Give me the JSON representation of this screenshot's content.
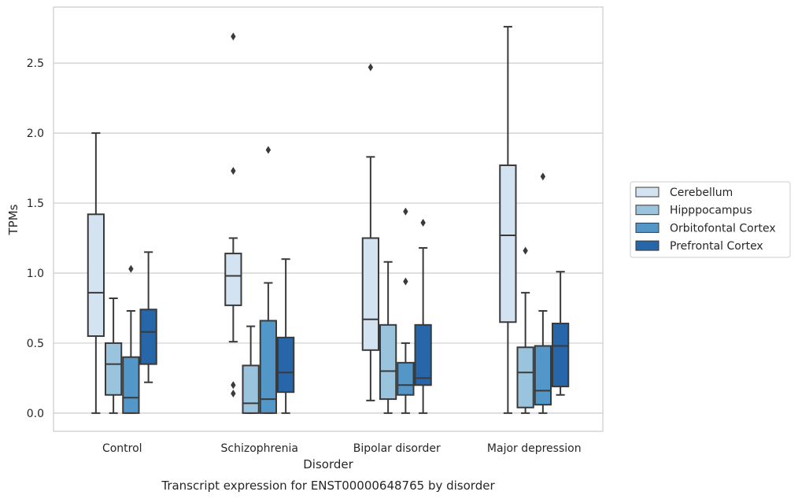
{
  "chart_data": {
    "type": "box",
    "title": "",
    "caption": "Transcript expression for ENST00000648765 by disorder",
    "xlabel": "Disorder",
    "ylabel": "TPMs",
    "ylim": [
      -0.13,
      2.9
    ],
    "yticks": [
      "0.0",
      "0.5",
      "1.0",
      "1.5",
      "2.0",
      "2.5"
    ],
    "grid": "horizontal",
    "legend_position": "right",
    "categories": [
      "Control",
      "Schizophrenia",
      "Bipolar disorder",
      "Major depression"
    ],
    "series": [
      {
        "name": "Cerebellum",
        "color": "#d3e3f2",
        "boxes": [
          {
            "whislo": 0.0,
            "q1": 0.55,
            "med": 0.86,
            "q3": 1.42,
            "whishi": 2.0,
            "fliers": []
          },
          {
            "whislo": 0.51,
            "q1": 0.77,
            "med": 0.98,
            "q3": 1.14,
            "whishi": 1.25,
            "fliers": [
              0.14,
              0.2,
              1.73,
              2.69
            ]
          },
          {
            "whislo": 0.09,
            "q1": 0.45,
            "med": 0.67,
            "q3": 1.25,
            "whishi": 1.83,
            "fliers": [
              2.47
            ]
          },
          {
            "whislo": 0.0,
            "q1": 0.65,
            "med": 1.27,
            "q3": 1.77,
            "whishi": 2.76,
            "fliers": []
          }
        ]
      },
      {
        "name": "Hipppocampus",
        "color": "#9ac4de",
        "boxes": [
          {
            "whislo": 0.0,
            "q1": 0.13,
            "med": 0.35,
            "q3": 0.5,
            "whishi": 0.82,
            "fliers": []
          },
          {
            "whislo": 0.0,
            "q1": 0.0,
            "med": 0.07,
            "q3": 0.34,
            "whishi": 0.62,
            "fliers": []
          },
          {
            "whislo": 0.0,
            "q1": 0.1,
            "med": 0.3,
            "q3": 0.63,
            "whishi": 1.08,
            "fliers": []
          },
          {
            "whislo": 0.0,
            "q1": 0.04,
            "med": 0.29,
            "q3": 0.47,
            "whishi": 0.86,
            "fliers": [
              1.16
            ]
          }
        ]
      },
      {
        "name": "Orbitofontal Cortex",
        "color": "#5397c8",
        "boxes": [
          {
            "whislo": 0.0,
            "q1": 0.0,
            "med": 0.11,
            "q3": 0.4,
            "whishi": 0.73,
            "fliers": [
              1.03
            ]
          },
          {
            "whislo": 0.0,
            "q1": 0.0,
            "med": 0.1,
            "q3": 0.66,
            "whishi": 0.93,
            "fliers": [
              1.88
            ]
          },
          {
            "whislo": 0.0,
            "q1": 0.13,
            "med": 0.2,
            "q3": 0.36,
            "whishi": 0.5,
            "fliers": [
              0.94,
              1.44
            ]
          },
          {
            "whislo": 0.0,
            "q1": 0.06,
            "med": 0.16,
            "q3": 0.48,
            "whishi": 0.73,
            "fliers": [
              1.69
            ]
          }
        ]
      },
      {
        "name": "Prefrontal Cortex",
        "color": "#2666a9",
        "boxes": [
          {
            "whislo": 0.22,
            "q1": 0.35,
            "med": 0.58,
            "q3": 0.74,
            "whishi": 1.15,
            "fliers": []
          },
          {
            "whislo": 0.0,
            "q1": 0.15,
            "med": 0.29,
            "q3": 0.54,
            "whishi": 1.1,
            "fliers": []
          },
          {
            "whislo": 0.0,
            "q1": 0.2,
            "med": 0.25,
            "q3": 0.63,
            "whishi": 1.18,
            "fliers": [
              1.36
            ]
          },
          {
            "whislo": 0.13,
            "q1": 0.19,
            "med": 0.48,
            "q3": 0.64,
            "whishi": 1.01,
            "fliers": []
          }
        ]
      }
    ]
  }
}
